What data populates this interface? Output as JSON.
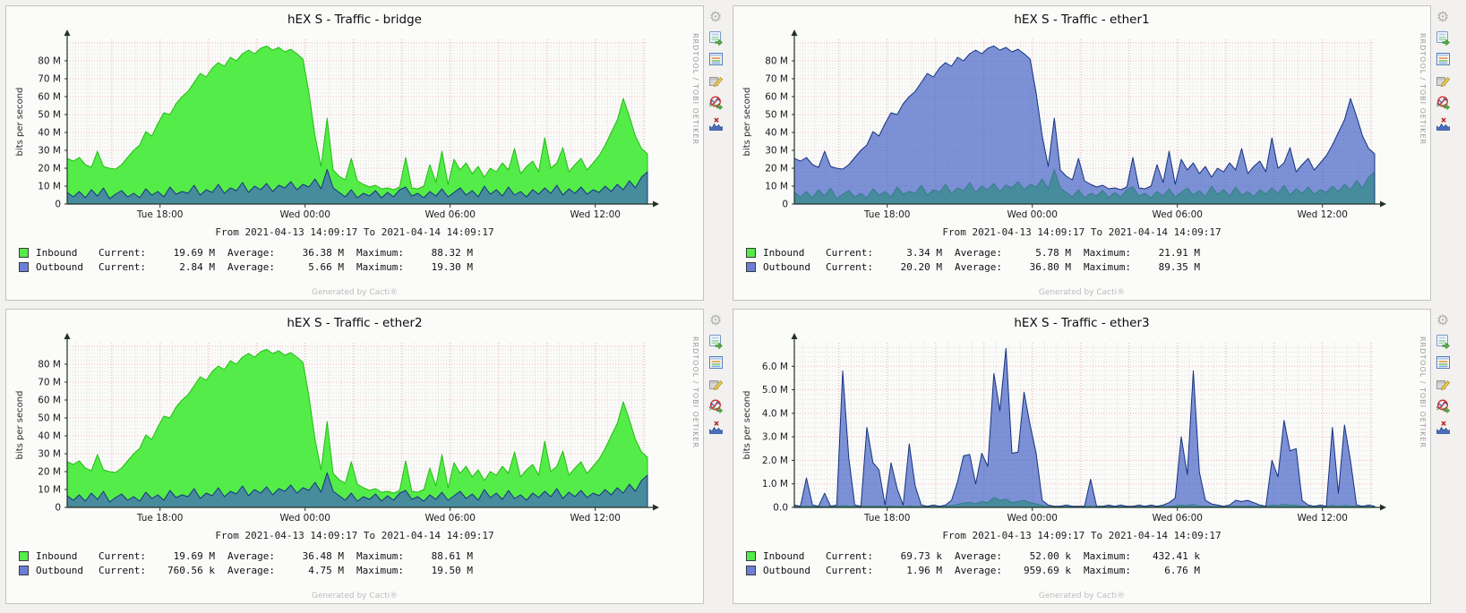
{
  "page": {
    "generated_by": "Generated by Cacti®",
    "watermark": "RRDTOOL / TOBI OETIKER"
  },
  "legend_labels": {
    "current": "Current:",
    "average": "Average:",
    "maximum": "Maximum:"
  },
  "colors": {
    "inbound_fill": "#54ec48",
    "inbound_stroke": "#24bc14",
    "outbound_fill": "#3f5fc4",
    "outbound_stroke": "#16337f",
    "outbound_swatch": "#6b7fd7",
    "grid_major": "#f2b4b4",
    "grid_minor": "#dcdcdc",
    "axis": "#223222"
  },
  "icons": [
    {
      "name": "graph-settings-icon"
    },
    {
      "name": "csv-export-icon"
    },
    {
      "name": "graph-source-icon"
    },
    {
      "name": "graph-edit-icon"
    },
    {
      "name": "graph-debug-icon"
    },
    {
      "name": "remove-spikes-icon"
    }
  ],
  "series_lib": {
    "big_day": [
      25.5,
      24,
      26,
      22,
      20.5,
      29.5,
      21,
      20,
      19.5,
      22,
      26,
      30,
      33,
      40.5,
      38,
      45,
      51,
      50,
      56,
      60,
      63,
      68,
      73,
      71,
      76,
      79,
      77,
      82,
      80,
      84,
      86,
      84,
      87,
      88.3,
      86,
      87.5,
      85,
      86.5,
      84,
      81,
      62,
      38,
      21,
      48,
      19,
      15.5,
      13.5,
      25.5,
      13,
      11,
      9.5,
      10.5,
      8.5,
      9,
      8,
      9.5,
      26,
      9,
      8.5,
      10,
      22,
      12,
      29.5,
      11,
      25,
      19,
      23,
      17,
      21,
      15,
      20,
      18,
      23,
      19,
      31,
      17,
      21,
      24,
      18,
      37,
      20,
      23,
      31.5,
      18,
      22,
      25.5,
      19,
      23,
      27,
      33,
      40,
      47,
      59,
      49,
      38,
      31,
      28
    ],
    "small_noise": [
      6.5,
      4,
      7,
      3.5,
      8,
      4.5,
      9,
      3,
      5.5,
      7.5,
      4,
      6,
      3.5,
      8.5,
      5,
      7,
      4,
      9.5,
      5.5,
      7,
      6,
      10.5,
      5,
      8,
      6.5,
      11,
      6,
      9,
      7.5,
      12,
      6.5,
      10,
      8,
      11.5,
      7,
      10.5,
      9,
      12.5,
      8,
      11,
      9.5,
      14,
      8.5,
      19.3,
      9,
      6.5,
      4,
      8,
      3.5,
      6,
      4.5,
      7.5,
      3.5,
      6.5,
      4,
      8,
      9.5,
      4.5,
      6,
      3.5,
      7,
      4.5,
      8.5,
      4,
      6.5,
      9,
      5,
      7.5,
      4,
      10,
      5.5,
      8,
      4.5,
      9.5,
      5,
      7,
      4,
      8,
      5.5,
      9,
      6,
      10.5,
      5,
      8.5,
      6,
      9.5,
      5.5,
      8,
      6.5,
      10,
      7,
      11,
      8,
      13,
      9,
      15,
      18
    ],
    "e3_out": [
      0.1,
      0.05,
      1.25,
      0.1,
      0.05,
      0.6,
      0.05,
      0.1,
      5.8,
      2.1,
      0.1,
      0.05,
      3.4,
      1.9,
      1.6,
      0.1,
      1.9,
      0.8,
      0.1,
      2.7,
      0.9,
      0.1,
      0.05,
      0.1,
      0.05,
      0.1,
      0.3,
      1.1,
      2.2,
      2.25,
      1.0,
      2.3,
      1.75,
      5.7,
      4.1,
      6.76,
      2.3,
      2.35,
      4.9,
      3.5,
      2.3,
      0.3,
      0.1,
      0.05,
      0.05,
      0.1,
      0.05,
      0.05,
      0.05,
      1.2,
      0.05,
      0.05,
      0.1,
      0.05,
      0.1,
      0.05,
      0.05,
      0.1,
      0.05,
      0.1,
      0.05,
      0.1,
      0.2,
      0.4,
      3.0,
      1.4,
      5.8,
      1.5,
      0.3,
      0.15,
      0.1,
      0.05,
      0.1,
      0.3,
      0.25,
      0.3,
      0.2,
      0.1,
      0.05,
      2.0,
      1.3,
      3.7,
      2.4,
      2.5,
      0.3,
      0.1,
      0.05,
      0.1,
      0.05,
      3.4,
      0.6,
      3.5,
      2.0,
      0.1,
      0.05,
      0.1,
      0.05
    ],
    "e3_in": [
      0.05,
      0.04,
      0.06,
      0.04,
      0.05,
      0.04,
      0.06,
      0.05,
      0.08,
      0.06,
      0.05,
      0.04,
      0.07,
      0.05,
      0.06,
      0.04,
      0.06,
      0.05,
      0.04,
      0.06,
      0.05,
      0.04,
      0.05,
      0.04,
      0.05,
      0.06,
      0.08,
      0.12,
      0.18,
      0.22,
      0.15,
      0.25,
      0.2,
      0.43,
      0.3,
      0.35,
      0.2,
      0.25,
      0.3,
      0.2,
      0.15,
      0.08,
      0.05,
      0.04,
      0.05,
      0.04,
      0.05,
      0.04,
      0.05,
      0.06,
      0.04,
      0.05,
      0.04,
      0.05,
      0.04,
      0.05,
      0.04,
      0.08,
      0.05,
      0.04,
      0.05,
      0.04,
      0.05,
      0.06,
      0.1,
      0.08,
      0.12,
      0.06,
      0.05,
      0.04,
      0.05,
      0.04,
      0.05,
      0.06,
      0.05,
      0.06,
      0.05,
      0.04,
      0.05,
      0.1,
      0.08,
      0.12,
      0.1,
      0.09,
      0.06,
      0.05,
      0.04,
      0.05,
      0.04,
      0.09,
      0.05,
      0.08,
      0.07,
      0.05,
      0.04,
      0.05,
      0.04
    ]
  },
  "chart_data": [
    {
      "type": "area",
      "title": "hEX S - Traffic - bridge",
      "ylabel": "bits per second",
      "from_label": "From 2021-04-13 14:09:17 To 2021-04-14 14:09:17",
      "unit": "Mbit/s",
      "ymax": 92,
      "y_major": 10,
      "y_minor": 2,
      "y_ticks": {
        "step": 10,
        "labels": [
          "0",
          "10 M",
          "20 M",
          "30 M",
          "40 M",
          "50 M",
          "60 M",
          "70 M",
          "80 M"
        ]
      },
      "x_ticks": [
        {
          "pos": 0.16,
          "label": "Tue 18:00"
        },
        {
          "pos": 0.41,
          "label": "Wed 00:00"
        },
        {
          "pos": 0.66,
          "label": "Wed 06:00"
        },
        {
          "pos": 0.91,
          "label": "Wed 12:00"
        }
      ],
      "series": [
        {
          "name": "Inbound",
          "data_ref": "big_day",
          "fill": "#54ec48",
          "stroke": "#24bc14",
          "opacity": 1
        },
        {
          "name": "Outbound",
          "data_ref": "small_noise",
          "fill": "#3f5fc4",
          "stroke": "#16337f",
          "opacity": 0.68
        }
      ],
      "legend_rows": [
        {
          "name": "Inbound",
          "swatch": "#54ec48",
          "current": "19.69 M",
          "average": "36.38 M",
          "maximum": "88.32 M"
        },
        {
          "name": "Outbound",
          "swatch": "#6b7fd7",
          "current": "2.84 M",
          "average": "5.66 M",
          "maximum": "19.30 M"
        }
      ]
    },
    {
      "type": "area",
      "title": "hEX S - Traffic - ether1",
      "ylabel": "bits per second",
      "from_label": "From 2021-04-13 14:09:17 To 2021-04-14 14:09:17",
      "unit": "Mbit/s",
      "ymax": 92,
      "y_major": 10,
      "y_minor": 2,
      "y_ticks": {
        "step": 10,
        "labels": [
          "0",
          "10 M",
          "20 M",
          "30 M",
          "40 M",
          "50 M",
          "60 M",
          "70 M",
          "80 M"
        ]
      },
      "x_ticks": [
        {
          "pos": 0.16,
          "label": "Tue 18:00"
        },
        {
          "pos": 0.41,
          "label": "Wed 00:00"
        },
        {
          "pos": 0.66,
          "label": "Wed 06:00"
        },
        {
          "pos": 0.91,
          "label": "Wed 12:00"
        }
      ],
      "series": [
        {
          "name": "Inbound",
          "data_ref": "small_noise",
          "fill": "#54ec48",
          "stroke": "#24bc14",
          "opacity": 1
        },
        {
          "name": "Outbound",
          "data_ref": "big_day",
          "fill": "#3f5fc4",
          "stroke": "#16337f",
          "opacity": 0.68
        }
      ],
      "legend_rows": [
        {
          "name": "Inbound",
          "swatch": "#54ec48",
          "current": "3.34 M",
          "average": "5.78 M",
          "maximum": "21.91 M"
        },
        {
          "name": "Outbound",
          "swatch": "#6b7fd7",
          "current": "20.20 M",
          "average": "36.80 M",
          "maximum": "89.35 M"
        }
      ]
    },
    {
      "type": "area",
      "title": "hEX S - Traffic - ether2",
      "ylabel": "bits per second",
      "from_label": "From 2021-04-13 14:09:17 To 2021-04-14 14:09:17",
      "unit": "Mbit/s",
      "ymax": 92,
      "y_major": 10,
      "y_minor": 2,
      "y_ticks": {
        "step": 10,
        "labels": [
          "0",
          "10 M",
          "20 M",
          "30 M",
          "40 M",
          "50 M",
          "60 M",
          "70 M",
          "80 M"
        ]
      },
      "x_ticks": [
        {
          "pos": 0.16,
          "label": "Tue 18:00"
        },
        {
          "pos": 0.41,
          "label": "Wed 00:00"
        },
        {
          "pos": 0.66,
          "label": "Wed 06:00"
        },
        {
          "pos": 0.91,
          "label": "Wed 12:00"
        }
      ],
      "series": [
        {
          "name": "Inbound",
          "data_ref": "big_day",
          "fill": "#54ec48",
          "stroke": "#24bc14",
          "opacity": 1
        },
        {
          "name": "Outbound",
          "data_ref": "small_noise",
          "fill": "#3f5fc4",
          "stroke": "#16337f",
          "opacity": 0.68
        }
      ],
      "legend_rows": [
        {
          "name": "Inbound",
          "swatch": "#54ec48",
          "current": "19.69 M",
          "average": "36.48 M",
          "maximum": "88.61 M"
        },
        {
          "name": "Outbound",
          "swatch": "#6b7fd7",
          "current": "760.56 k",
          "average": "4.75 M",
          "maximum": "19.50 M"
        }
      ]
    },
    {
      "type": "area",
      "title": "hEX S - Traffic - ether3",
      "ylabel": "bits per second",
      "from_label": "From 2021-04-13 14:09:17 To 2021-04-14 14:09:17",
      "unit": "Mbit/s",
      "ymax": 7,
      "y_major": 1,
      "y_minor": 0.2,
      "y_ticks": {
        "step": 1,
        "labels": [
          "0.0",
          "1.0 M",
          "2.0 M",
          "3.0 M",
          "4.0 M",
          "5.0 M",
          "6.0 M"
        ]
      },
      "x_ticks": [
        {
          "pos": 0.16,
          "label": "Tue 18:00"
        },
        {
          "pos": 0.41,
          "label": "Wed 00:00"
        },
        {
          "pos": 0.66,
          "label": "Wed 06:00"
        },
        {
          "pos": 0.91,
          "label": "Wed 12:00"
        }
      ],
      "series": [
        {
          "name": "Inbound",
          "data_ref": "e3_in",
          "fill": "#54ec48",
          "stroke": "#24bc14",
          "opacity": 1
        },
        {
          "name": "Outbound",
          "data_ref": "e3_out",
          "fill": "#3f5fc4",
          "stroke": "#16337f",
          "opacity": 0.68
        }
      ],
      "legend_rows": [
        {
          "name": "Inbound",
          "swatch": "#54ec48",
          "current": "69.73 k",
          "average": "52.00 k",
          "maximum": "432.41 k"
        },
        {
          "name": "Outbound",
          "swatch": "#6b7fd7",
          "current": "1.96 M",
          "average": "959.69 k",
          "maximum": "6.76 M"
        }
      ]
    }
  ]
}
